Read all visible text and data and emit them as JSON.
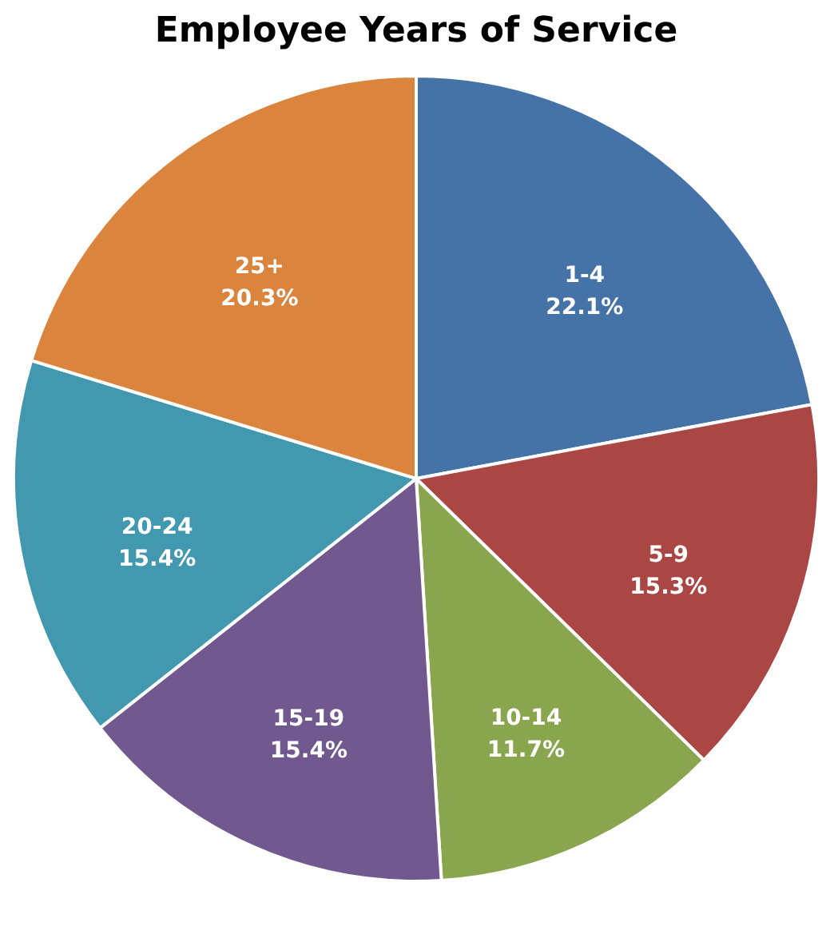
{
  "chart_data": {
    "type": "pie",
    "title": "Employee Years of Service",
    "categories": [
      "1-4",
      "5-9",
      "10-14",
      "15-19",
      "20-24",
      "25+"
    ],
    "values": [
      22.1,
      15.3,
      11.7,
      15.4,
      15.4,
      20.3
    ],
    "value_labels": [
      "22.1%",
      "15.3%",
      "11.7%",
      "15.4%",
      "15.4%",
      "20.3%"
    ],
    "colors": [
      "#4572a7",
      "#aa4643",
      "#89a54e",
      "#71588f",
      "#4198af",
      "#db843d"
    ],
    "legend": false
  }
}
